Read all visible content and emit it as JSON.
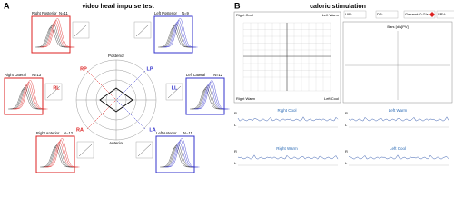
{
  "panel_a": {
    "letter": "A",
    "title": "video head impulse test",
    "axis_top": "Posterior",
    "axis_bottom": "Anterior",
    "canals": [
      {
        "label": "Right Posterior",
        "n": "N=11",
        "code": "RP"
      },
      {
        "label": "Left Posterior",
        "n": "N=9",
        "code": "LP"
      },
      {
        "label": "Right Lateral",
        "n": "N=13",
        "code": "RL"
      },
      {
        "label": "Left Lateral",
        "n": "N=12",
        "code": "LL"
      },
      {
        "label": "Right Anterior",
        "n": "N=12",
        "code": "RA"
      },
      {
        "label": "Left Anterior",
        "n": "N=11",
        "code": "LA"
      }
    ]
  },
  "panel_b": {
    "letter": "B",
    "title": "caloric stimulation",
    "toolbar": [
      "UW:",
      "DP:",
      "Gesamt: 0 G/s",
      "SPV:"
    ],
    "grid_corners": [
      "Right Cool",
      "Left Warm",
      "Right Warm",
      "Left Cool"
    ],
    "bars_label": "Bars [d/s]PV]",
    "traces": [
      "Right Cool",
      "Left Warm",
      "Right Warm",
      "Left Cool"
    ],
    "side_labels": [
      "R",
      "L"
    ]
  }
}
